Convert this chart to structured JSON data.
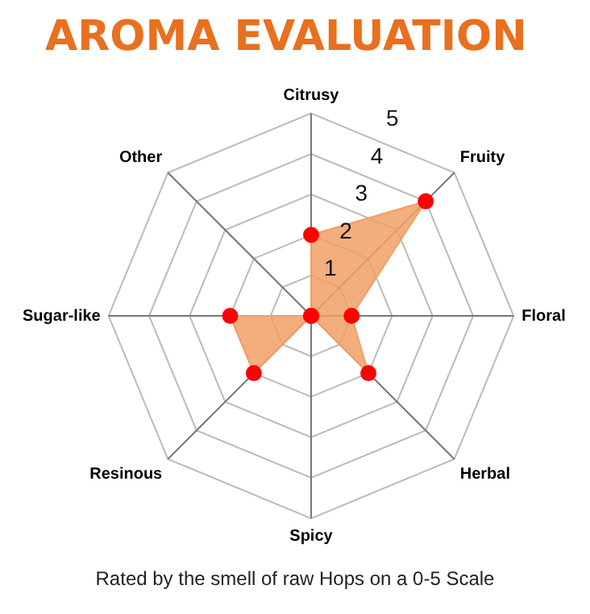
{
  "chart_data": {
    "type": "radar",
    "title": "AROMA EVALUATION",
    "categories": [
      "Citrusy",
      "Fruity",
      "Floral",
      "Herbal",
      "Spicy",
      "Resinous",
      "Sugar-like",
      "Other"
    ],
    "series": [
      {
        "color": "#f0a066",
        "colors": [
          "#ff0000",
          "#ff0000",
          "#ff0000",
          "#ff0000",
          "#ff0000",
          "#ff0000",
          "#ff0000",
          "#ff0000"
        ],
        "values": [
          2,
          4,
          1,
          2,
          0,
          2,
          2,
          0
        ]
      }
    ],
    "ylim": [
      0,
      5
    ],
    "yticks": [
      1,
      2,
      3,
      4,
      5
    ],
    "marker": "circle",
    "legend": false,
    "annotations": [
      "Rated by the smell of raw Hops on a 0-5 Scale"
    ]
  }
}
